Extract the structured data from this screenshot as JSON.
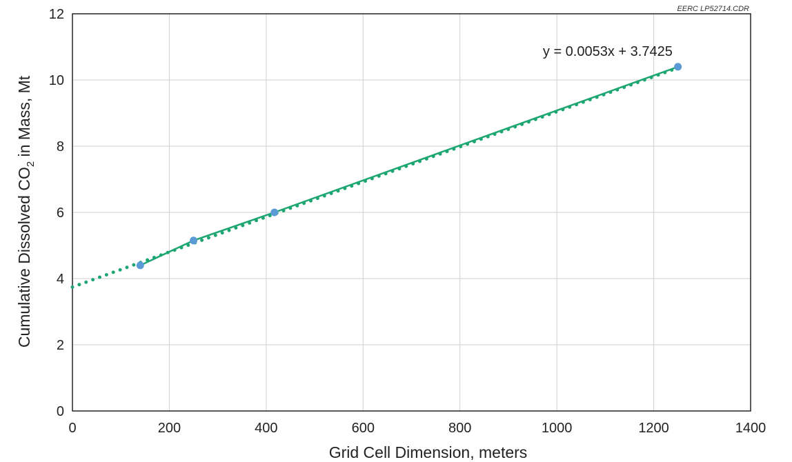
{
  "chart_data": {
    "type": "scatter",
    "source_label": "EERC LP52714.CDR",
    "xlabel": "Grid Cell Dimension, meters",
    "ylabel": {
      "prefix": "Cumulative Dissolved CO",
      "subscript": "2",
      "suffix": " in Mass, Mt"
    },
    "xlim": [
      0,
      1400
    ],
    "ylim": [
      0,
      12
    ],
    "xticks": [
      0,
      200,
      400,
      600,
      800,
      1000,
      1200,
      1400
    ],
    "yticks": [
      0,
      2,
      4,
      6,
      8,
      10,
      12
    ],
    "grid": true,
    "legend": "none",
    "series": [
      {
        "x": [
          140,
          250,
          417,
          1250
        ],
        "y": [
          4.4,
          5.15,
          6.0,
          10.4
        ],
        "color": "#5B9BD5",
        "line_color": "#1EA672"
      }
    ],
    "trendline": {
      "slope": 0.0053,
      "intercept": 3.7425,
      "x_range": [
        0,
        1250
      ],
      "style": "dotted",
      "color": "#1EA672"
    },
    "annotation": "y = 0.0053x + 3.7425"
  }
}
